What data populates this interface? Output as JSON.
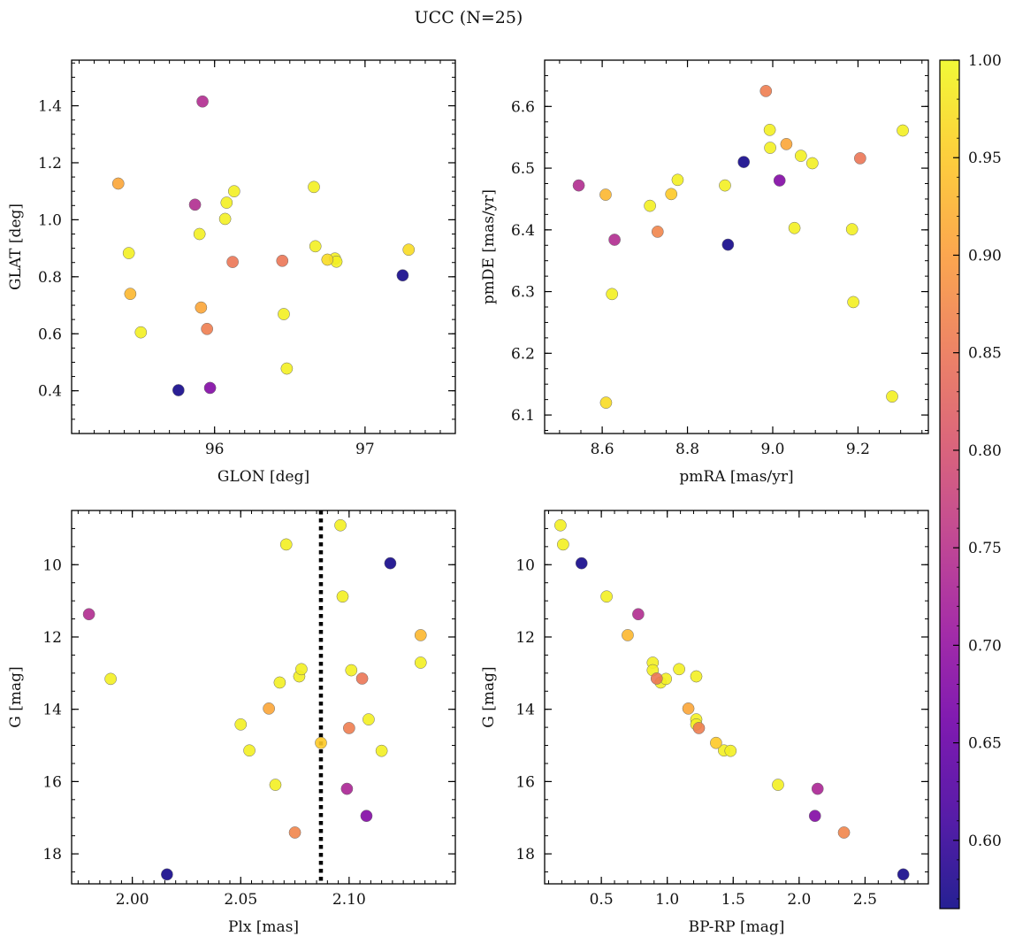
{
  "figure": {
    "title": "UCC (N=25)"
  },
  "colorbar": {
    "range": [
      0.565,
      1.0
    ],
    "ticks": [
      0.6,
      0.65,
      0.7,
      0.75,
      0.8,
      0.85,
      0.9,
      0.95,
      1.0
    ],
    "tick_labels": [
      "0.60",
      "0.65",
      "0.70",
      "0.75",
      "0.80",
      "0.85",
      "0.90",
      "0.95",
      "1.00"
    ],
    "colormap": "plasma",
    "colormap_stops": [
      "#0d0887",
      "#46039f",
      "#7201a8",
      "#9c179e",
      "#bd3786",
      "#d8576b",
      "#ed7953",
      "#fb9f3a",
      "#fdca26",
      "#f0f921"
    ]
  },
  "chart_data": [
    {
      "id": "glon-glat",
      "type": "scatter",
      "title": "",
      "xlabel": "GLON [deg]",
      "ylabel": "GLAT [deg]",
      "xlim": [
        95.05,
        97.6
      ],
      "ylim": [
        0.25,
        1.56
      ],
      "xticks": [
        96,
        97
      ],
      "xtick_labels": [
        "96",
        "97"
      ],
      "yticks": [
        0.4,
        0.6,
        0.8,
        1.0,
        1.2,
        1.4
      ],
      "ytick_labels": [
        "0.4",
        "0.6",
        "0.8",
        "1.0",
        "1.2",
        "1.4"
      ],
      "x_minor_step": 0.1,
      "y_minor_step": 0.05,
      "invert_y": false,
      "points": [
        {
          "x": 95.36,
          "y": 1.127,
          "c": 0.91
        },
        {
          "x": 95.43,
          "y": 0.883,
          "c": 0.99
        },
        {
          "x": 95.44,
          "y": 0.74,
          "c": 0.93
        },
        {
          "x": 95.51,
          "y": 0.605,
          "c": 0.99
        },
        {
          "x": 95.76,
          "y": 0.402,
          "c": 0.57
        },
        {
          "x": 95.87,
          "y": 1.053,
          "c": 0.74
        },
        {
          "x": 95.9,
          "y": 0.95,
          "c": 0.99
        },
        {
          "x": 95.91,
          "y": 0.692,
          "c": 0.91
        },
        {
          "x": 95.92,
          "y": 1.415,
          "c": 0.74
        },
        {
          "x": 95.95,
          "y": 0.617,
          "c": 0.86
        },
        {
          "x": 95.97,
          "y": 0.41,
          "c": 0.68
        },
        {
          "x": 96.07,
          "y": 1.003,
          "c": 0.99
        },
        {
          "x": 96.08,
          "y": 1.06,
          "c": 0.99
        },
        {
          "x": 96.12,
          "y": 0.852,
          "c": 0.85
        },
        {
          "x": 96.13,
          "y": 1.1,
          "c": 0.99
        },
        {
          "x": 96.45,
          "y": 0.856,
          "c": 0.85
        },
        {
          "x": 96.46,
          "y": 0.669,
          "c": 0.99
        },
        {
          "x": 96.48,
          "y": 0.478,
          "c": 0.99
        },
        {
          "x": 96.66,
          "y": 1.115,
          "c": 0.99
        },
        {
          "x": 96.67,
          "y": 0.907,
          "c": 0.99
        },
        {
          "x": 96.75,
          "y": 0.86,
          "c": 0.97
        },
        {
          "x": 96.8,
          "y": 0.864,
          "c": 0.99
        },
        {
          "x": 96.81,
          "y": 0.853,
          "c": 0.99
        },
        {
          "x": 97.25,
          "y": 0.805,
          "c": 0.57
        },
        {
          "x": 97.29,
          "y": 0.895,
          "c": 0.97
        }
      ]
    },
    {
      "id": "pmra-pmde",
      "type": "scatter",
      "title": "",
      "xlabel": "pmRA [mas/yr]",
      "ylabel": "pmDE [mas/yr]",
      "xlim": [
        8.465,
        9.365
      ],
      "ylim": [
        6.07,
        6.675
      ],
      "xticks": [
        8.6,
        8.8,
        9.0,
        9.2
      ],
      "xtick_labels": [
        "8.6",
        "8.8",
        "9.0",
        "9.2"
      ],
      "yticks": [
        6.1,
        6.2,
        6.3,
        6.4,
        6.5,
        6.6
      ],
      "ytick_labels": [
        "6.1",
        "6.2",
        "6.3",
        "6.4",
        "6.5",
        "6.6"
      ],
      "x_minor_step": 0.05,
      "y_minor_step": 0.025,
      "invert_y": false,
      "points": [
        {
          "x": 8.545,
          "y": 6.472,
          "c": 0.74
        },
        {
          "x": 8.608,
          "y": 6.457,
          "c": 0.93
        },
        {
          "x": 8.609,
          "y": 6.12,
          "c": 0.97
        },
        {
          "x": 8.623,
          "y": 6.296,
          "c": 0.99
        },
        {
          "x": 8.629,
          "y": 6.384,
          "c": 0.74
        },
        {
          "x": 8.712,
          "y": 6.439,
          "c": 0.99
        },
        {
          "x": 8.73,
          "y": 6.397,
          "c": 0.87
        },
        {
          "x": 8.762,
          "y": 6.458,
          "c": 0.95
        },
        {
          "x": 8.777,
          "y": 6.481,
          "c": 0.99
        },
        {
          "x": 8.888,
          "y": 6.472,
          "c": 0.99
        },
        {
          "x": 8.895,
          "y": 6.376,
          "c": 0.57
        },
        {
          "x": 8.932,
          "y": 6.51,
          "c": 0.57
        },
        {
          "x": 8.984,
          "y": 6.625,
          "c": 0.86
        },
        {
          "x": 8.993,
          "y": 6.562,
          "c": 0.99
        },
        {
          "x": 8.994,
          "y": 6.533,
          "c": 0.99
        },
        {
          "x": 9.016,
          "y": 6.48,
          "c": 0.68
        },
        {
          "x": 9.032,
          "y": 6.539,
          "c": 0.91
        },
        {
          "x": 9.051,
          "y": 6.403,
          "c": 0.99
        },
        {
          "x": 9.066,
          "y": 6.52,
          "c": 0.99
        },
        {
          "x": 9.093,
          "y": 6.508,
          "c": 0.99
        },
        {
          "x": 9.186,
          "y": 6.401,
          "c": 0.99
        },
        {
          "x": 9.189,
          "y": 6.283,
          "c": 0.99
        },
        {
          "x": 9.205,
          "y": 6.516,
          "c": 0.85
        },
        {
          "x": 9.28,
          "y": 6.13,
          "c": 0.99
        },
        {
          "x": 9.305,
          "y": 6.561,
          "c": 0.99
        }
      ]
    },
    {
      "id": "plx-g",
      "type": "scatter",
      "title": "",
      "xlabel": "Plx [mas]",
      "ylabel": "G [mag]",
      "xlim": [
        1.972,
        2.149
      ],
      "ylim": [
        18.83,
        8.5
      ],
      "xticks": [
        2.0,
        2.05,
        2.1
      ],
      "xtick_labels": [
        "2.00",
        "2.05",
        "2.10"
      ],
      "yticks": [
        10,
        12,
        14,
        16,
        18
      ],
      "ytick_labels": [
        "10",
        "12",
        "14",
        "16",
        "18"
      ],
      "x_minor_step": 0.005,
      "y_minor_step": 0.5,
      "invert_y": true,
      "vline": {
        "x": 2.087,
        "style": "dotted"
      },
      "points": [
        {
          "x": 1.98,
          "y": 11.37,
          "c": 0.74
        },
        {
          "x": 1.99,
          "y": 13.16,
          "c": 0.99
        },
        {
          "x": 2.016,
          "y": 18.57,
          "c": 0.57
        },
        {
          "x": 2.05,
          "y": 14.42,
          "c": 0.99
        },
        {
          "x": 2.054,
          "y": 15.14,
          "c": 0.99
        },
        {
          "x": 2.063,
          "y": 13.98,
          "c": 0.91
        },
        {
          "x": 2.066,
          "y": 16.09,
          "c": 0.99
        },
        {
          "x": 2.068,
          "y": 13.26,
          "c": 0.99
        },
        {
          "x": 2.071,
          "y": 9.44,
          "c": 0.99
        },
        {
          "x": 2.075,
          "y": 17.41,
          "c": 0.87
        },
        {
          "x": 2.077,
          "y": 13.09,
          "c": 0.99
        },
        {
          "x": 2.078,
          "y": 12.89,
          "c": 0.99
        },
        {
          "x": 2.087,
          "y": 14.93,
          "c": 0.95
        },
        {
          "x": 2.096,
          "y": 8.91,
          "c": 0.99
        },
        {
          "x": 2.097,
          "y": 10.88,
          "c": 0.99
        },
        {
          "x": 2.099,
          "y": 16.2,
          "c": 0.73
        },
        {
          "x": 2.1,
          "y": 14.52,
          "c": 0.86
        },
        {
          "x": 2.101,
          "y": 12.92,
          "c": 0.99
        },
        {
          "x": 2.106,
          "y": 13.15,
          "c": 0.85
        },
        {
          "x": 2.109,
          "y": 14.28,
          "c": 0.99
        },
        {
          "x": 2.108,
          "y": 16.95,
          "c": 0.68
        },
        {
          "x": 2.115,
          "y": 15.15,
          "c": 0.99
        },
        {
          "x": 2.119,
          "y": 9.96,
          "c": 0.57
        },
        {
          "x": 2.133,
          "y": 11.95,
          "c": 0.93
        },
        {
          "x": 2.133,
          "y": 12.71,
          "c": 0.99
        }
      ]
    },
    {
      "id": "bprp-g",
      "type": "scatter",
      "title": "",
      "xlabel": "BP-RP [mag]",
      "ylabel": "G [mag]",
      "xlim": [
        0.07,
        2.98
      ],
      "ylim": [
        18.83,
        8.5
      ],
      "xticks": [
        0.5,
        1.0,
        1.5,
        2.0,
        2.5
      ],
      "xtick_labels": [
        "0.5",
        "1.0",
        "1.5",
        "2.0",
        "2.5"
      ],
      "yticks": [
        10,
        12,
        14,
        16,
        18
      ],
      "ytick_labels": [
        "10",
        "12",
        "14",
        "16",
        "18"
      ],
      "x_minor_step": 0.1,
      "y_minor_step": 0.5,
      "invert_y": true,
      "points": [
        {
          "x": 0.19,
          "y": 8.91,
          "c": 0.99
        },
        {
          "x": 0.21,
          "y": 9.44,
          "c": 0.99
        },
        {
          "x": 0.35,
          "y": 9.96,
          "c": 0.57
        },
        {
          "x": 0.54,
          "y": 10.88,
          "c": 0.99
        },
        {
          "x": 0.7,
          "y": 11.95,
          "c": 0.93
        },
        {
          "x": 0.78,
          "y": 11.37,
          "c": 0.74
        },
        {
          "x": 0.89,
          "y": 12.71,
          "c": 0.99
        },
        {
          "x": 0.89,
          "y": 12.92,
          "c": 0.99
        },
        {
          "x": 0.92,
          "y": 13.15,
          "c": 0.85
        },
        {
          "x": 0.95,
          "y": 13.26,
          "c": 0.99
        },
        {
          "x": 0.99,
          "y": 13.16,
          "c": 0.99
        },
        {
          "x": 1.09,
          "y": 12.89,
          "c": 0.99
        },
        {
          "x": 1.22,
          "y": 13.09,
          "c": 0.99
        },
        {
          "x": 1.16,
          "y": 13.98,
          "c": 0.91
        },
        {
          "x": 1.22,
          "y": 14.28,
          "c": 0.99
        },
        {
          "x": 1.22,
          "y": 14.42,
          "c": 0.99
        },
        {
          "x": 1.24,
          "y": 14.52,
          "c": 0.86
        },
        {
          "x": 1.37,
          "y": 14.93,
          "c": 0.95
        },
        {
          "x": 1.43,
          "y": 15.14,
          "c": 0.99
        },
        {
          "x": 1.48,
          "y": 15.15,
          "c": 0.99
        },
        {
          "x": 1.84,
          "y": 16.09,
          "c": 0.99
        },
        {
          "x": 2.14,
          "y": 16.2,
          "c": 0.73
        },
        {
          "x": 2.12,
          "y": 16.95,
          "c": 0.68
        },
        {
          "x": 2.34,
          "y": 17.41,
          "c": 0.87
        },
        {
          "x": 2.79,
          "y": 18.57,
          "c": 0.57
        }
      ]
    }
  ]
}
